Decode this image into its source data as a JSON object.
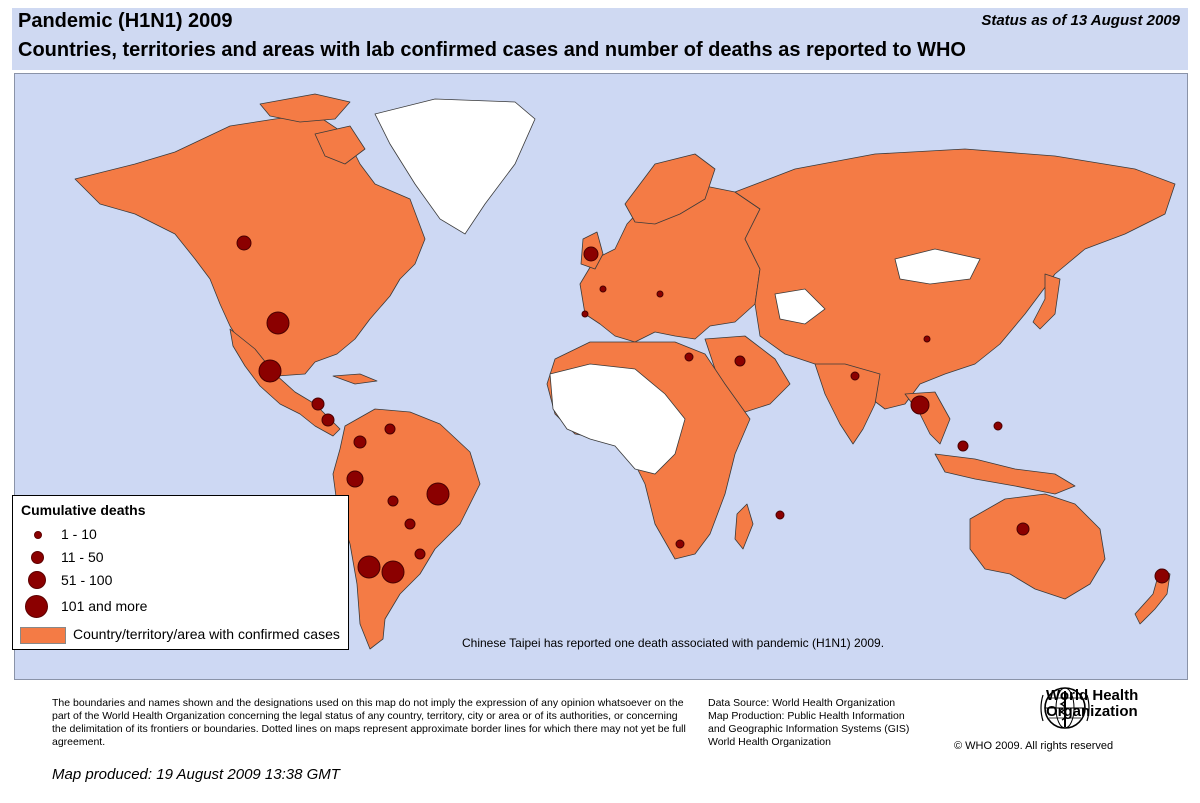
{
  "header": {
    "title": "Pandemic (H1N1) 2009",
    "subtitle": "Countries, territories and areas with lab confirmed cases and number of deaths as reported to WHO",
    "status": "Status as of 13 August 2009"
  },
  "colors": {
    "header_bg": "#cfd9f2",
    "ocean": "#cdd8f3",
    "confirmed_fill": "#f47b45",
    "no_data_fill": "#ffffff",
    "death_marker": "#8b0000"
  },
  "legend": {
    "title": "Cumulative deaths",
    "items": [
      {
        "label": "1 - 10"
      },
      {
        "label": "11 - 50"
      },
      {
        "label": "51 - 100"
      },
      {
        "label": "101 and more"
      }
    ],
    "confirmed_label": "Country/territory/area with confirmed cases"
  },
  "map_note": "Chinese Taipei has reported one death associated with pandemic (H1N1) 2009.",
  "footer": {
    "disclaimer": "The boundaries and names shown and the designations used on this map do not imply the expression of any opinion whatsoever on the part of the World Health Organization concerning the legal status of any country, territory, city or area or of its authorities, or concerning the delimitation of its frontiers or boundaries.  Dotted lines on maps represent approximate border lines for which there may not yet be full agreement.",
    "source_lines": [
      "Data Source: World Health Organization",
      "Map Production: Public Health Information",
      "and Geographic Information Systems (GIS)",
      "World Health Organization"
    ],
    "org_name_line1": "World Health",
    "org_name_line2": "Organization",
    "copyright": "© WHO 2009. All rights reserved",
    "produced": "Map produced: 19 August 2009 13:38 GMT"
  }
}
